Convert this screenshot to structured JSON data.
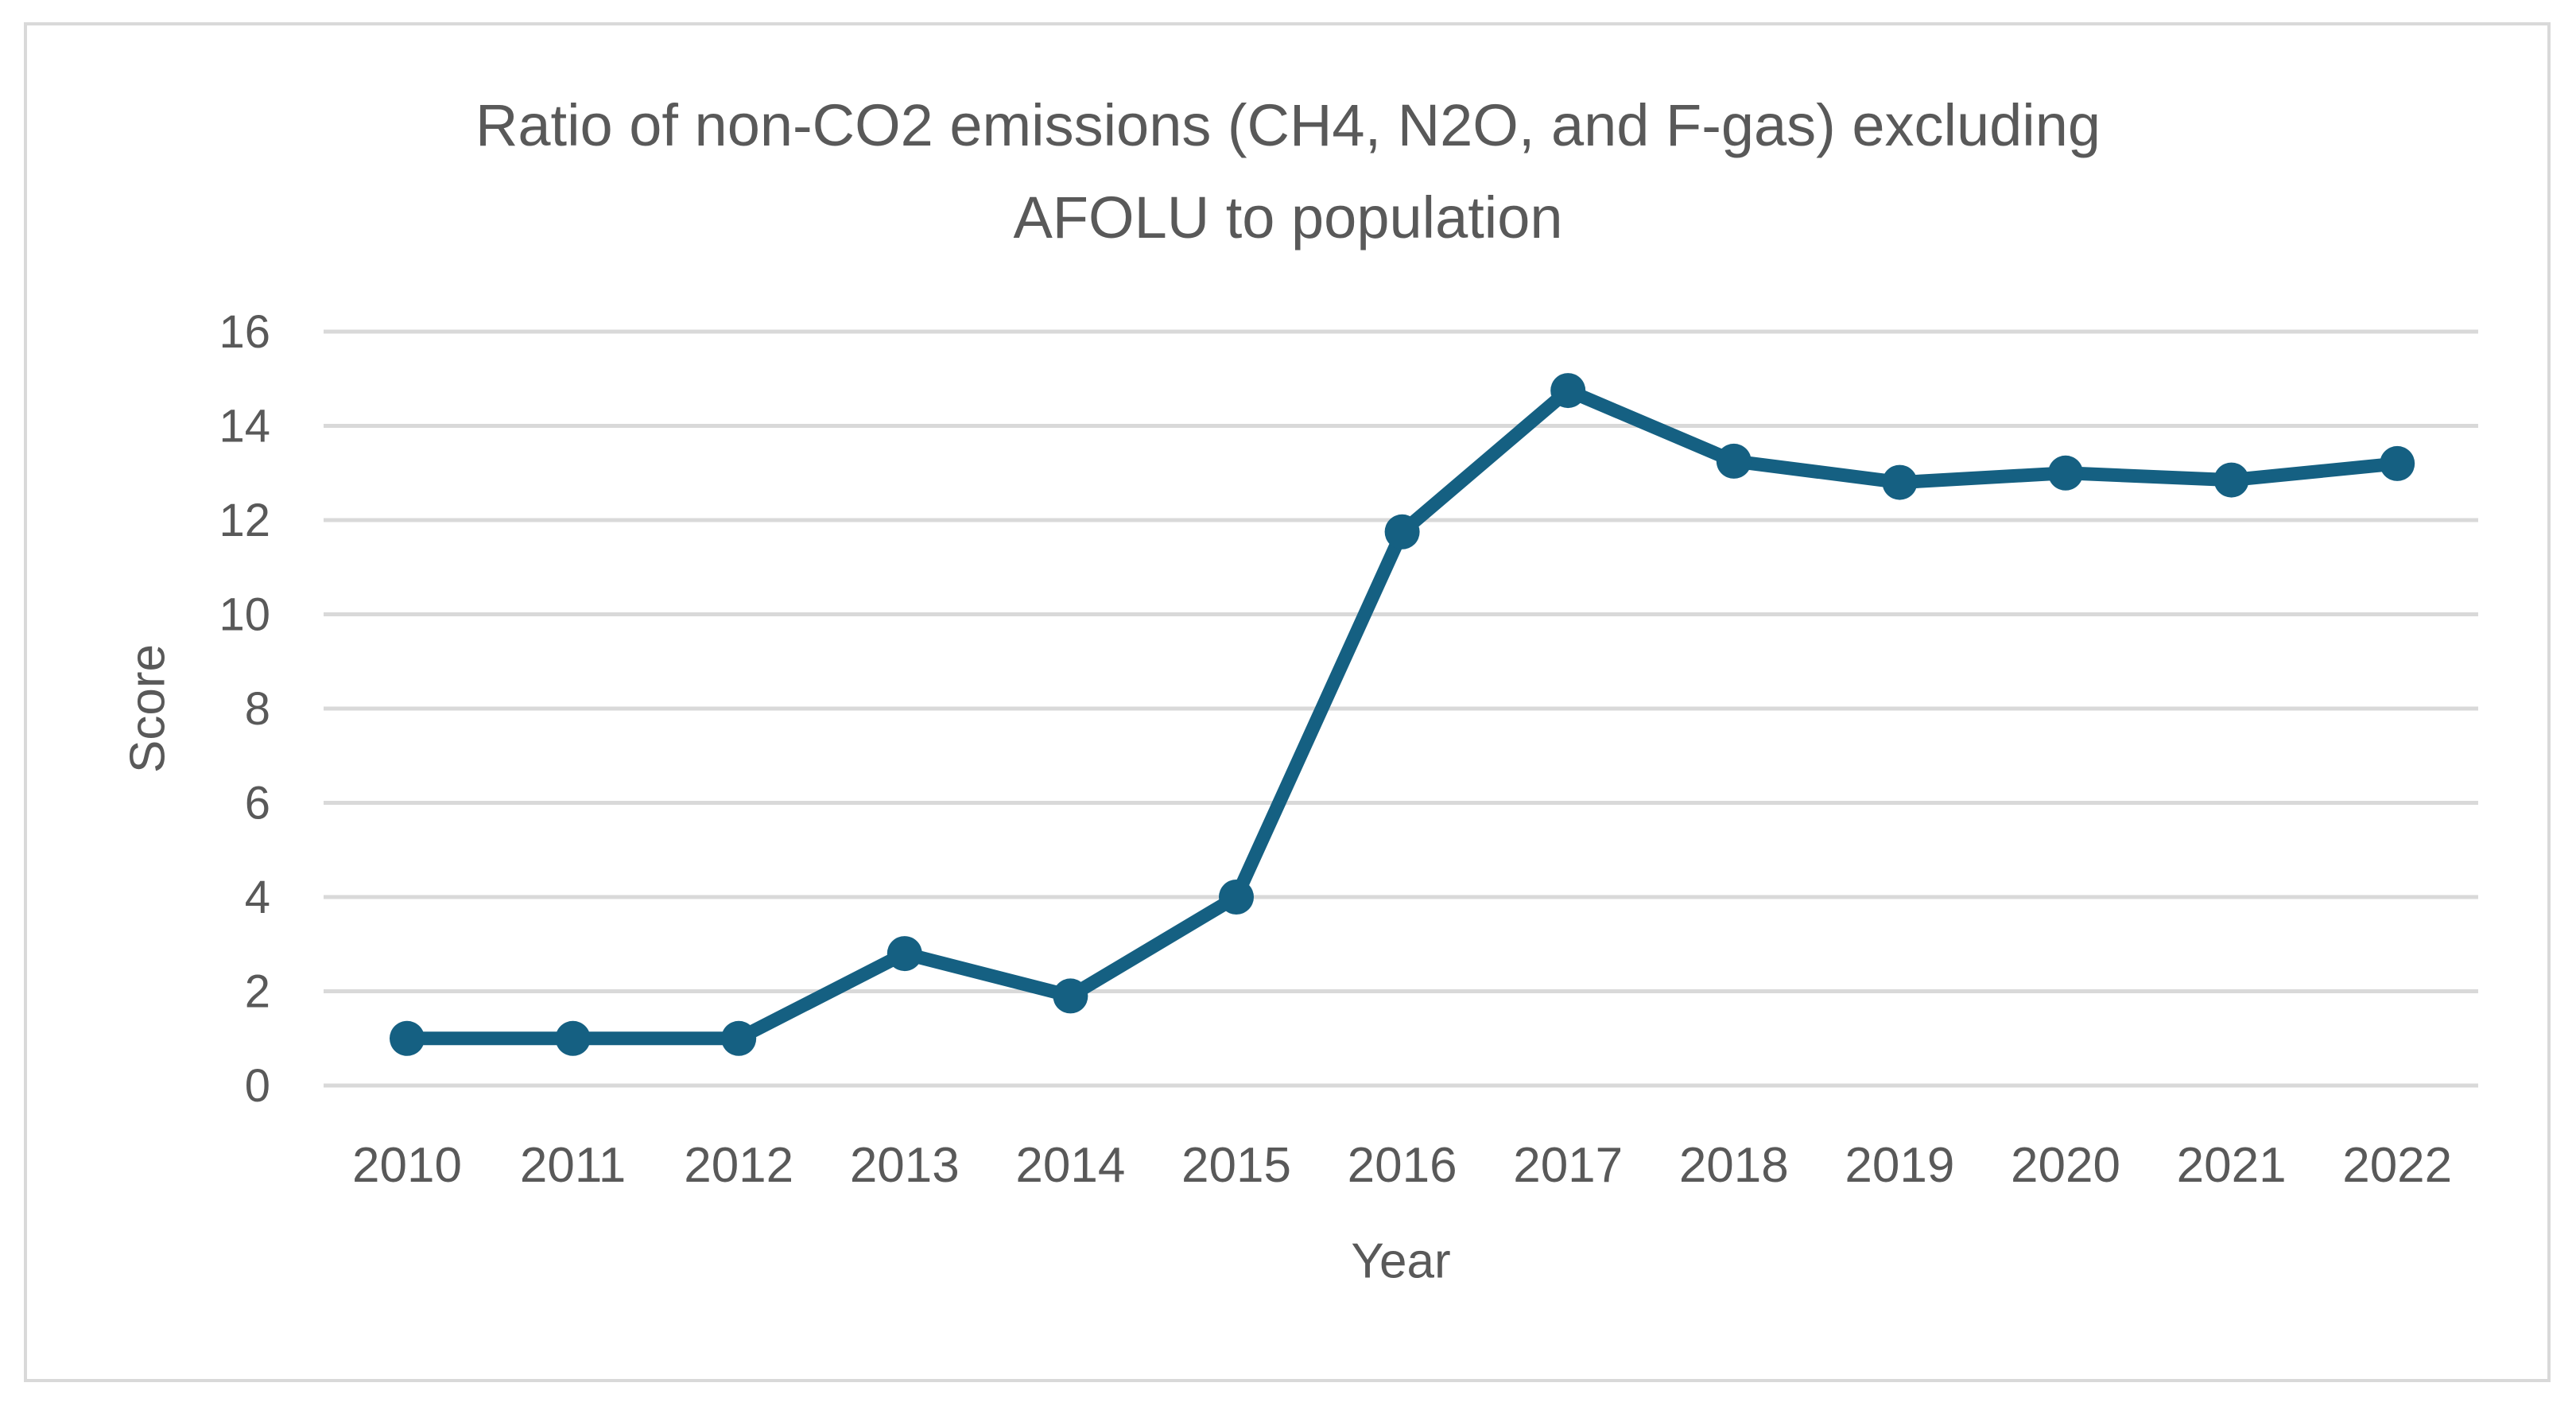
{
  "chart_data": {
    "type": "line",
    "title": "Ratio of non-CO2 emissions (CH4, N2O, and F-gas) excluding AFOLU to population",
    "title_lines": [
      "Ratio of non-CO2 emissions (CH4, N2O, and F-gas) excluding",
      "AFOLU to population"
    ],
    "xlabel": "Year",
    "ylabel": "Score",
    "categories": [
      "2010",
      "2011",
      "2012",
      "2013",
      "2014",
      "2015",
      "2016",
      "2017",
      "2018",
      "2019",
      "2020",
      "2021",
      "2022"
    ],
    "series": [
      {
        "name": "Score",
        "values": [
          1.0,
          1.0,
          1.0,
          2.8,
          1.9,
          4.0,
          11.75,
          14.75,
          13.25,
          12.8,
          13.0,
          12.85,
          13.2
        ]
      }
    ],
    "ylim": [
      0,
      16
    ],
    "yticks": [
      0,
      2,
      4,
      6,
      8,
      10,
      12,
      14,
      16
    ],
    "grid": true,
    "legend": false,
    "marker": "circle",
    "colors": {
      "line": "#156082",
      "marker": "#156082",
      "grid": "#D9D9D9",
      "text": "#595959",
      "frame_border": "#D9D9D9",
      "background": "#FFFFFF"
    }
  }
}
